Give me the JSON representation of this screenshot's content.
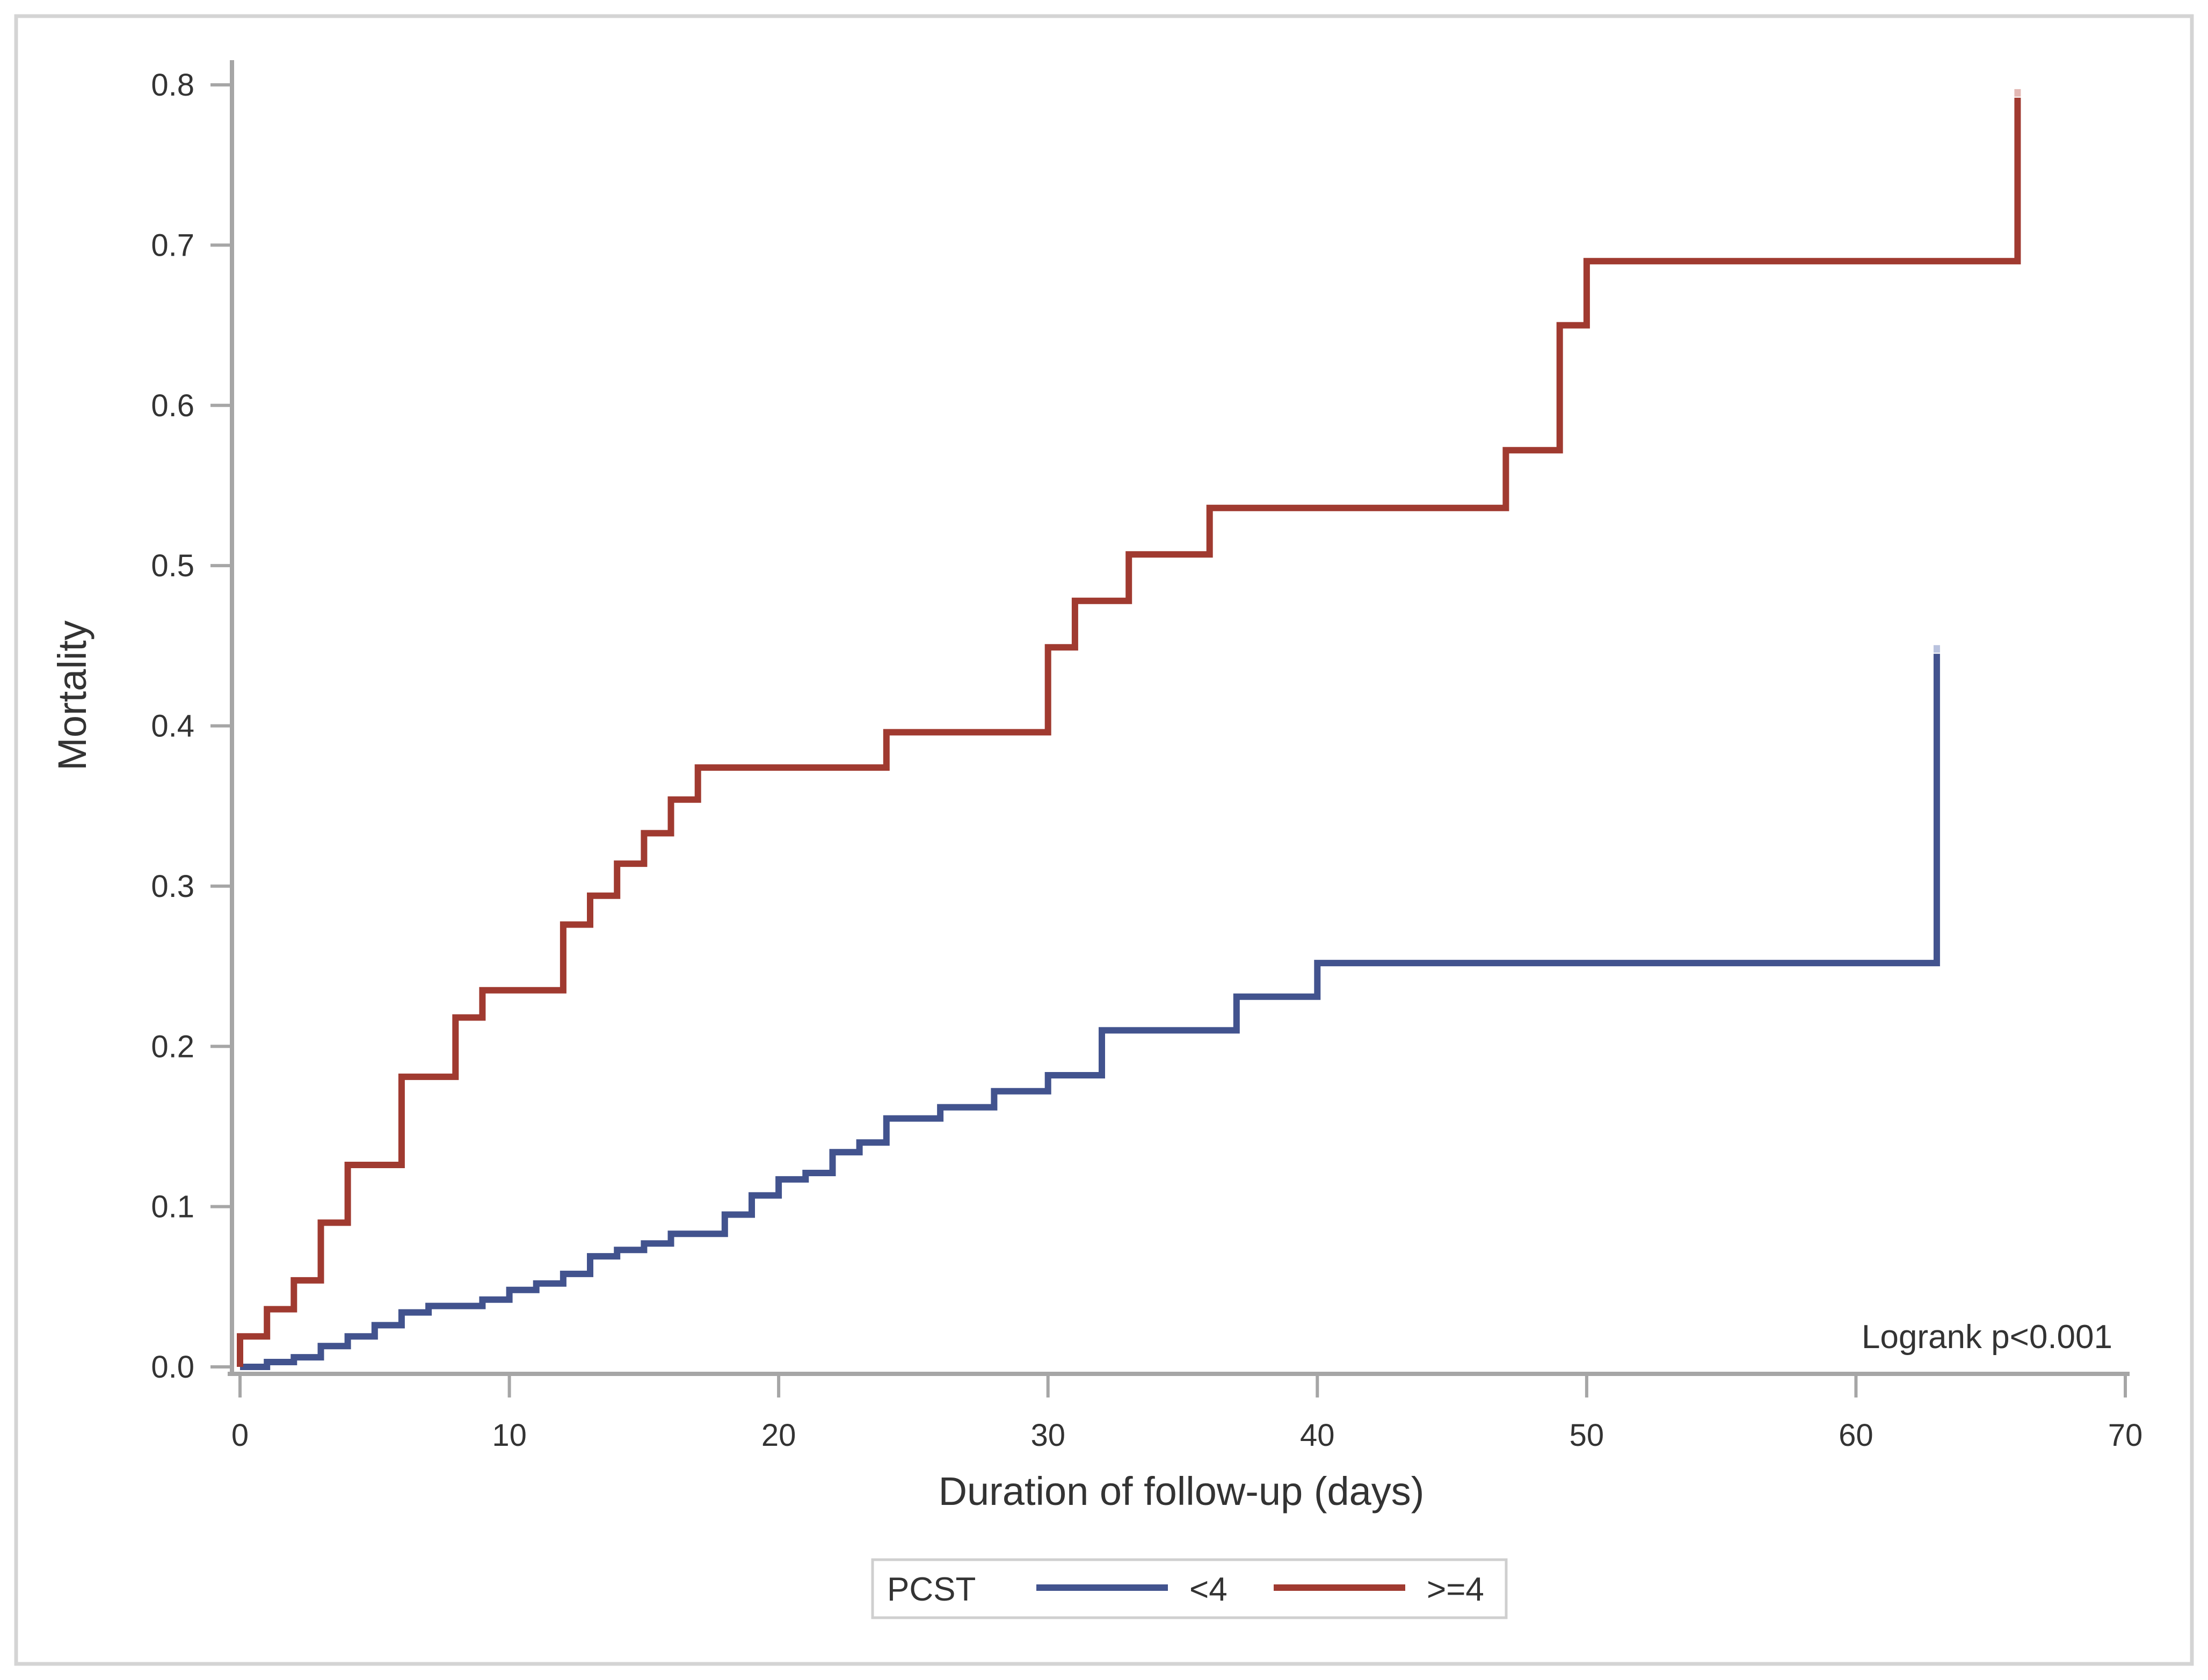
{
  "figure": {
    "background": "#FFFFFF",
    "border_color": "#D4D4D4",
    "axis_line_color": "#A6A6A6",
    "tick_color": "#A6A6A6",
    "text_color": "#333333"
  },
  "chart_data": {
    "type": "line",
    "subtype": "step-kaplan-meier-cumulative-incidence",
    "title": "",
    "xlabel": "Duration of follow-up (days)",
    "ylabel": "Mortality",
    "xlim": [
      0,
      70
    ],
    "ylim": [
      0.0,
      0.8
    ],
    "xticks": [
      0,
      10,
      20,
      30,
      40,
      50,
      60,
      70
    ],
    "yticks": [
      "0.0",
      "0.1",
      "0.2",
      "0.3",
      "0.4",
      "0.5",
      "0.6",
      "0.7",
      "0.8"
    ],
    "grid": false,
    "annotation": "Logrank p<0.001",
    "legend": {
      "title": "PCST",
      "position": "bottom-center",
      "entries": [
        {
          "label": "<4",
          "color": "#42538E"
        },
        {
          "label": ">=4",
          "color": "#A03A30"
        }
      ]
    },
    "series": [
      {
        "name": "<4",
        "color": "#42538E",
        "cap_color": "#B9C2DE",
        "points": [
          [
            1,
            0.003
          ],
          [
            2,
            0.006
          ],
          [
            3,
            0.013
          ],
          [
            4,
            0.019
          ],
          [
            5,
            0.026
          ],
          [
            6,
            0.034
          ],
          [
            7,
            0.038
          ],
          [
            9,
            0.042
          ],
          [
            10,
            0.048
          ],
          [
            11,
            0.052
          ],
          [
            12,
            0.058
          ],
          [
            13,
            0.069
          ],
          [
            14,
            0.073
          ],
          [
            15,
            0.077
          ],
          [
            16,
            0.083
          ],
          [
            18,
            0.095
          ],
          [
            19,
            0.107
          ],
          [
            20,
            0.117
          ],
          [
            21,
            0.121
          ],
          [
            22,
            0.134
          ],
          [
            23,
            0.14
          ],
          [
            24,
            0.155
          ],
          [
            26,
            0.162
          ],
          [
            28,
            0.172
          ],
          [
            30,
            0.182
          ],
          [
            32,
            0.21
          ],
          [
            37,
            0.231
          ],
          [
            40,
            0.252
          ],
          [
            63,
            0.445
          ]
        ]
      },
      {
        "name": ">=4",
        "color": "#A03A30",
        "cap_color": "#E3B8B4",
        "points": [
          [
            0,
            0.019
          ],
          [
            1,
            0.036
          ],
          [
            2,
            0.054
          ],
          [
            3,
            0.09
          ],
          [
            4,
            0.126
          ],
          [
            6,
            0.181
          ],
          [
            8,
            0.218
          ],
          [
            9,
            0.235
          ],
          [
            12,
            0.276
          ],
          [
            13,
            0.294
          ],
          [
            14,
            0.314
          ],
          [
            15,
            0.333
          ],
          [
            16,
            0.354
          ],
          [
            17,
            0.374
          ],
          [
            24,
            0.396
          ],
          [
            30,
            0.449
          ],
          [
            31,
            0.478
          ],
          [
            33,
            0.507
          ],
          [
            36,
            0.536
          ],
          [
            47,
            0.572
          ],
          [
            49,
            0.65
          ],
          [
            50,
            0.69
          ],
          [
            66,
            0.792
          ]
        ]
      }
    ]
  }
}
